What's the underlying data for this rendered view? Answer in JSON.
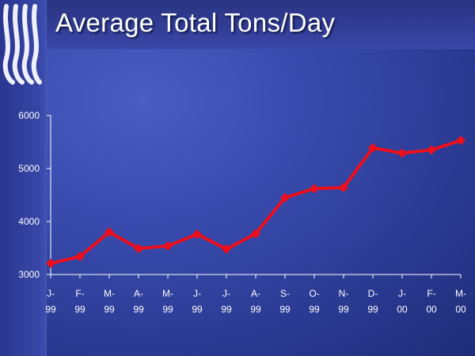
{
  "slide": {
    "title": "Average Total Tons/Day"
  },
  "logo": {
    "icon": "stylized-waves-logo-icon"
  },
  "chart_data": {
    "type": "line",
    "title": "Average Total Tons/Day",
    "xlabel": "",
    "ylabel": "",
    "ylim": [
      3000,
      6000
    ],
    "yticks": [
      3000,
      4000,
      5000,
      6000
    ],
    "ytick_labels": [
      "3000",
      "4000",
      "5000",
      "6000"
    ],
    "categories": [
      [
        "J-",
        "99"
      ],
      [
        "F-",
        "99"
      ],
      [
        "M-",
        "99"
      ],
      [
        "A-",
        "99"
      ],
      [
        "M-",
        "99"
      ],
      [
        "J-",
        "99"
      ],
      [
        "J-",
        "99"
      ],
      [
        "A-",
        "99"
      ],
      [
        "S-",
        "99"
      ],
      [
        "O-",
        "99"
      ],
      [
        "N-",
        "99"
      ],
      [
        "D-",
        "99"
      ],
      [
        "J-",
        "00"
      ],
      [
        "F-",
        "00"
      ],
      [
        "M-",
        "00"
      ]
    ],
    "series": [
      {
        "values": [
          3210,
          3340,
          3800,
          3490,
          3540,
          3760,
          3480,
          3770,
          4450,
          4620,
          4640,
          5390,
          5290,
          5350,
          5530
        ],
        "color": "#ee0f1c",
        "marker": "diamond"
      }
    ],
    "grid": false,
    "legend": "none",
    "axis_color": "#ffffff"
  }
}
